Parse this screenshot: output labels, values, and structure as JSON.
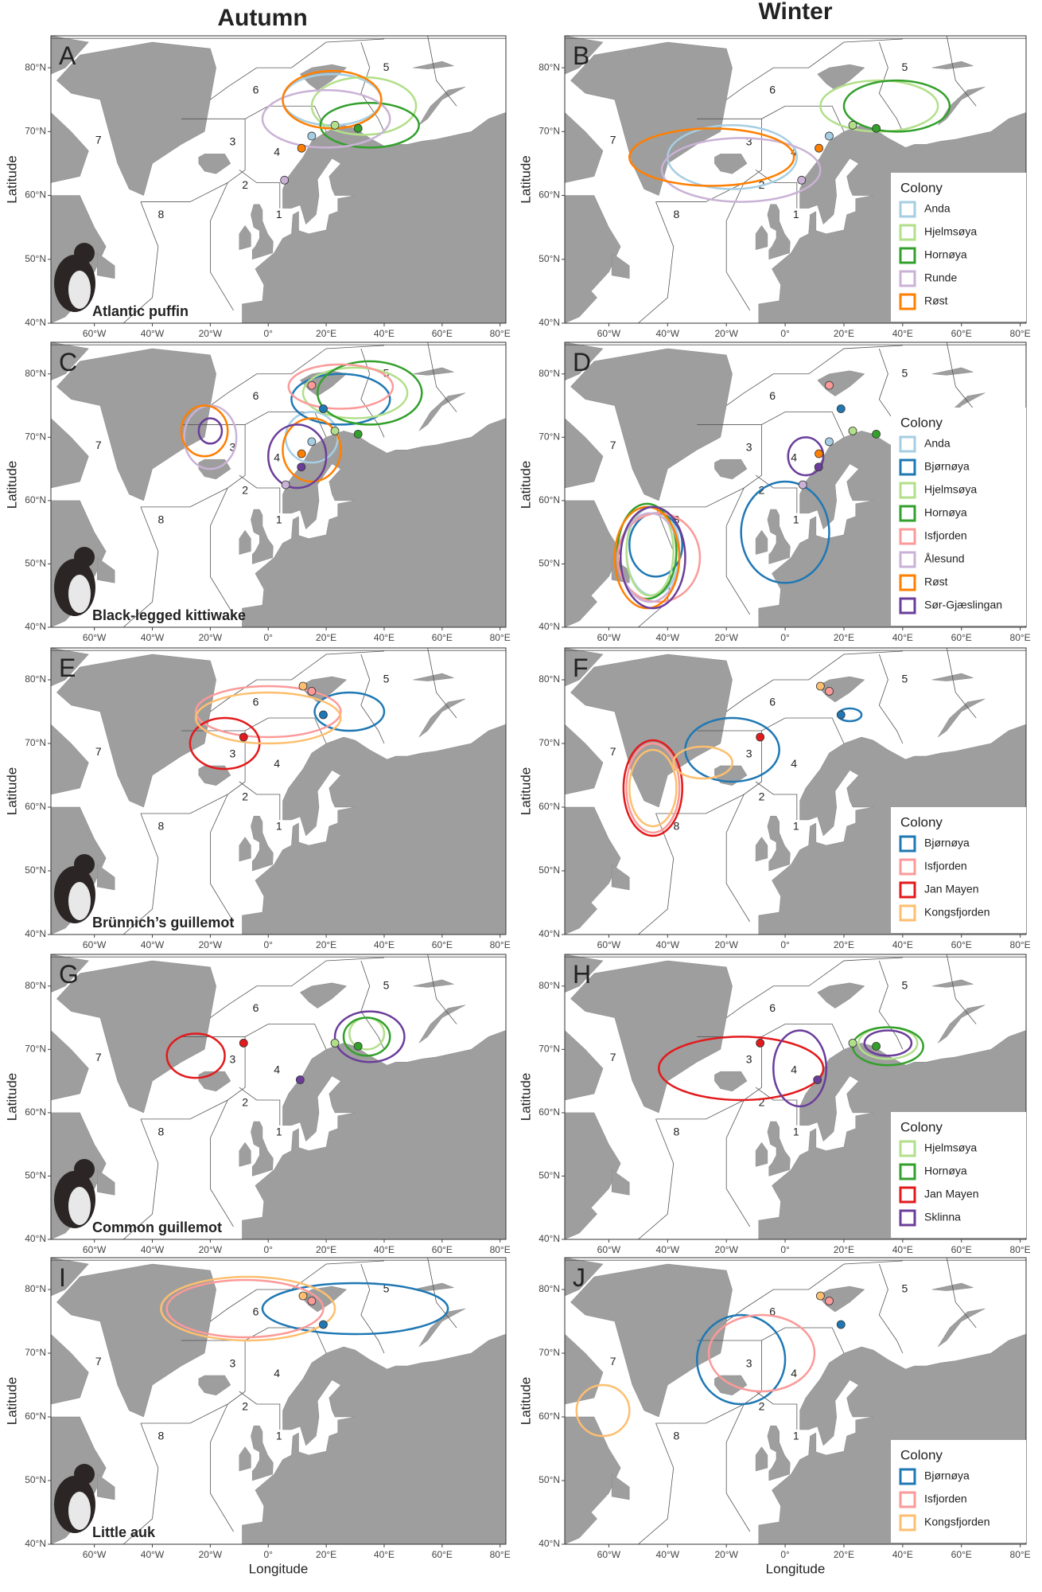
{
  "headings": [
    "Autumn",
    "Winter"
  ],
  "axis": {
    "x": "Longitude",
    "y": "Latitude"
  },
  "legend_title": "Colony",
  "zones": [
    "1",
    "2",
    "3",
    "4",
    "5",
    "6",
    "7",
    "8"
  ],
  "lon_lim": [
    -75,
    82
  ],
  "lat_lim": [
    40,
    85
  ],
  "lat_ticks": [
    {
      "value": 40,
      "label": "40°N"
    },
    {
      "value": 50,
      "label": "50°N"
    },
    {
      "value": 60,
      "label": "60°N"
    },
    {
      "value": 70,
      "label": "70°N"
    },
    {
      "value": 80,
      "label": "80°N"
    }
  ],
  "lon_ticks": [
    {
      "value": -60,
      "label": "60°W"
    },
    {
      "value": -40,
      "label": "40°W"
    },
    {
      "value": -20,
      "label": "20°W"
    },
    {
      "value": 0,
      "label": "0°"
    },
    {
      "value": 20,
      "label": "20°E"
    },
    {
      "value": 40,
      "label": "40°E"
    },
    {
      "value": 60,
      "label": "60°E"
    },
    {
      "value": 80,
      "label": "80°E"
    }
  ],
  "rows": [
    {
      "letters": [
        "A",
        "B"
      ],
      "species": "Atlantic puffin",
      "colonies": [
        {
          "name": "Anda",
          "color": "#a6cee3",
          "lon": 15,
          "lat": 69.3,
          "autumn": [
            [
              22,
              75,
              17,
              4
            ]
          ],
          "winter": [
            [
              -18,
              66,
              22,
              5
            ]
          ]
        },
        {
          "name": "Hjelmsøya",
          "color": "#b2df8a",
          "lon": 23,
          "lat": 71,
          "autumn": [
            [
              33,
              74,
              18,
              4.5
            ]
          ],
          "winter": [
            [
              32,
              74,
              20,
              4
            ]
          ]
        },
        {
          "name": "Hornøya",
          "color": "#33a02c",
          "lon": 31,
          "lat": 70.5,
          "autumn": [
            [
              35,
              71,
              17,
              3.5
            ]
          ],
          "winter": [
            [
              38,
              74,
              18,
              4
            ]
          ]
        },
        {
          "name": "Runde",
          "color": "#cab2d6",
          "lon": 5.6,
          "lat": 62.4,
          "autumn": [
            [
              20,
              72,
              22,
              4.5
            ]
          ],
          "winter": [
            [
              -15,
              64,
              27,
              5
            ]
          ]
        },
        {
          "name": "Røst",
          "color": "#ff7f00",
          "lon": 11.5,
          "lat": 67.4,
          "autumn": [
            [
              22,
              75,
              17,
              4.5
            ]
          ],
          "winter": [
            [
              -25,
              66,
              28,
              4.5
            ]
          ]
        }
      ]
    },
    {
      "letters": [
        "C",
        "D"
      ],
      "species": "Black-legged kittiwake",
      "colonies": [
        {
          "name": "Anda",
          "color": "#a6cee3",
          "lon": 15,
          "lat": 69.3,
          "autumn": [
            [
              15,
              70,
              9,
              4
            ]
          ],
          "winter": [
            [
              -45,
              52,
              9,
              7
            ]
          ]
        },
        {
          "name": "Bjørnøya",
          "color": "#1f78b4",
          "lon": 19,
          "lat": 74.5,
          "autumn": [
            [
              25,
              76,
              17,
              4
            ]
          ],
          "winter": [
            [
              -44,
              53,
              9,
              5
            ],
            [
              0,
              55,
              15,
              8
            ]
          ]
        },
        {
          "name": "Hjelmsøya",
          "color": "#b2df8a",
          "lon": 23,
          "lat": 71,
          "autumn": [
            [
              30,
              77,
              18,
              4
            ]
          ],
          "winter": [
            [
              -46,
              52,
              8,
              7
            ]
          ]
        },
        {
          "name": "Hornøya",
          "color": "#33a02c",
          "lon": 31,
          "lat": 70.5,
          "autumn": [
            [
              35,
              77,
              18,
              5
            ]
          ],
          "winter": [
            [
              -47,
              52,
              10,
              7.5
            ]
          ]
        },
        {
          "name": "Isfjorden",
          "color": "#fb9a99",
          "lon": 15,
          "lat": 78.2,
          "autumn": [
            [
              25,
              78,
              18,
              3.5
            ]
          ],
          "winter": [
            [
              -43,
              51,
              14,
              7
            ]
          ]
        },
        {
          "name": "Ålesund",
          "color": "#cab2d6",
          "lon": 6,
          "lat": 62.5,
          "autumn": [
            [
              -20,
              70,
              9,
              5
            ]
          ],
          "winter": [
            [
              -46,
              51,
              10,
              7
            ]
          ]
        },
        {
          "name": "Røst",
          "color": "#ff7f00",
          "lon": 11.5,
          "lat": 67.4,
          "autumn": [
            [
              -22,
              71,
              8,
              4
            ],
            [
              15,
              68,
              10,
              5
            ]
          ],
          "winter": [
            [
              -47,
              51,
              11,
              8
            ]
          ]
        },
        {
          "name": "Sør-Gjæslingan",
          "color": "#6a3d9a",
          "lon": 11.4,
          "lat": 65.3,
          "autumn": [
            [
              -20,
              71,
              4,
              2
            ],
            [
              10,
              67,
              10,
              5
            ]
          ],
          "winter": [
            [
              -45,
              51,
              11,
              8
            ],
            [
              7,
              67,
              6,
              3
            ]
          ]
        }
      ]
    },
    {
      "letters": [
        "E",
        "F"
      ],
      "species": "Brünnich’s guillemot",
      "colonies": [
        {
          "name": "Bjørnøya",
          "color": "#1f78b4",
          "lon": 19,
          "lat": 74.5,
          "autumn": [
            [
              28,
              75,
              12,
              3
            ]
          ],
          "winter": [
            [
              -18,
              69,
              16,
              5
            ],
            [
              22,
              74.5,
              4,
              1
            ]
          ]
        },
        {
          "name": "Isfjorden",
          "color": "#fb9a99",
          "lon": 15,
          "lat": 78.2,
          "autumn": [
            [
              0,
              75,
              25,
              4
            ]
          ],
          "winter": [
            [
              -45,
              63,
              9,
              7
            ]
          ]
        },
        {
          "name": "Jan Mayen",
          "color": "#e31a1c",
          "lon": -8.5,
          "lat": 71,
          "autumn": [
            [
              -15,
              70,
              12,
              4
            ]
          ],
          "winter": [
            [
              -45,
              63,
              10,
              7.5
            ]
          ]
        },
        {
          "name": "Kongsfjorden",
          "color": "#fdbf6f",
          "lon": 12,
          "lat": 79,
          "autumn": [
            [
              0,
              74,
              25,
              4
            ]
          ],
          "winter": [
            [
              -28,
              67,
              10,
              2.5
            ],
            [
              -45,
              63,
              8,
              6
            ]
          ]
        }
      ]
    },
    {
      "letters": [
        "G",
        "H"
      ],
      "species": "Common guillemot",
      "colonies": [
        {
          "name": "Hjelmsøya",
          "color": "#b2df8a",
          "lon": 23,
          "lat": 71,
          "autumn": [
            [
              34,
              72.5,
              6,
              2.5
            ]
          ],
          "winter": [
            [
              35,
              71,
              10,
              2.5
            ]
          ]
        },
        {
          "name": "Hornøya",
          "color": "#33a02c",
          "lon": 31,
          "lat": 70.5,
          "autumn": [
            [
              34,
              72,
              8,
              3
            ]
          ],
          "winter": [
            [
              35,
              70.5,
              12,
              3
            ]
          ]
        },
        {
          "name": "Jan Mayen",
          "color": "#e31a1c",
          "lon": -8.5,
          "lat": 71,
          "autumn": [
            [
              -25,
              69,
              10,
              3.5
            ]
          ],
          "winter": [
            [
              -15,
              67,
              28,
              5
            ]
          ]
        },
        {
          "name": "Sklinna",
          "color": "#6a3d9a",
          "lon": 11,
          "lat": 65.2,
          "autumn": [
            [
              35,
              72,
              12,
              4
            ]
          ],
          "winter": [
            [
              5,
              67,
              9,
              6
            ],
            [
              35,
              71,
              8,
              2
            ]
          ]
        }
      ]
    },
    {
      "letters": [
        "I",
        "J"
      ],
      "species": "Little auk",
      "colonies": [
        {
          "name": "Bjørnøya",
          "color": "#1f78b4",
          "lon": 19,
          "lat": 74.5,
          "autumn": [
            [
              30,
              77,
              32,
              4
            ]
          ],
          "winter": [
            [
              -15,
              69,
              15,
              7
            ]
          ]
        },
        {
          "name": "Isfjorden",
          "color": "#fb9a99",
          "lon": 15,
          "lat": 78.2,
          "autumn": [
            [
              -8,
              77,
              27,
              4.5
            ]
          ],
          "winter": [
            [
              -8,
              70,
              18,
              6
            ]
          ]
        },
        {
          "name": "Kongsfjorden",
          "color": "#fdbf6f",
          "lon": 12,
          "lat": 79,
          "autumn": [
            [
              -7,
              77,
              30,
              5
            ]
          ],
          "winter": [
            [
              -62,
              61,
              9,
              4
            ]
          ]
        }
      ]
    }
  ]
}
